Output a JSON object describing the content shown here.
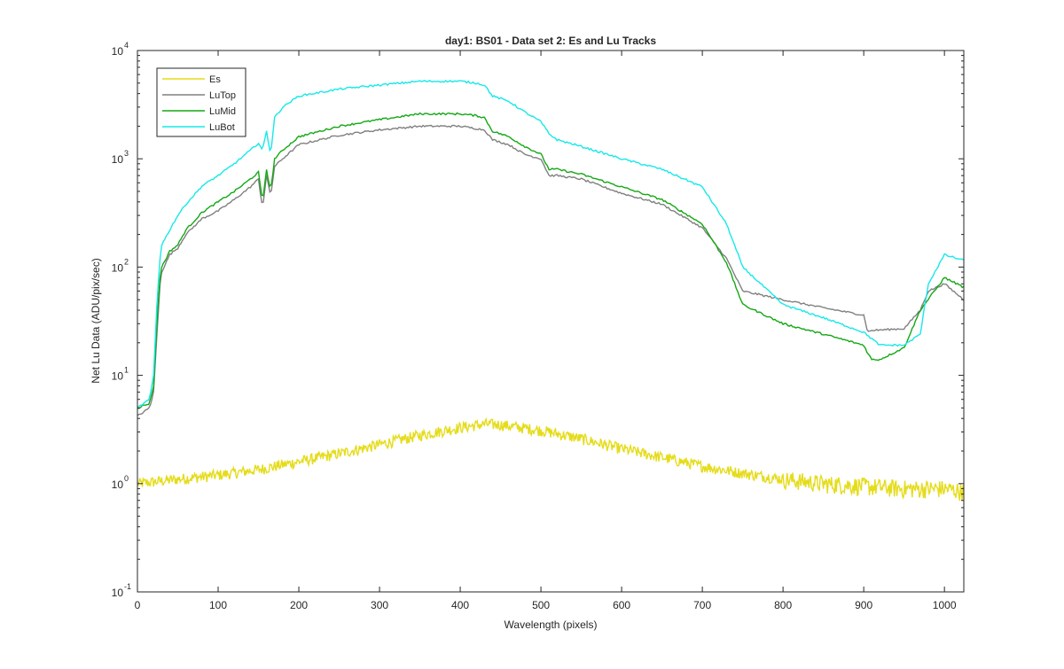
{
  "chart_data": {
    "type": "line",
    "title": "day1: BS01 - Data set 2: Es and Lu Tracks",
    "xlabel": "Wavelength (pixels)",
    "ylabel": "Net Lu Data (ADU/pix/sec)",
    "xlim": [
      0,
      1024
    ],
    "ylim": [
      0.1,
      10000
    ],
    "yscale": "log",
    "grid": false,
    "legend_position": "top-left",
    "x_ticks": [
      "0",
      "100",
      "200",
      "300",
      "400",
      "500",
      "600",
      "700",
      "800",
      "900",
      "1000"
    ],
    "y_ticks": [
      {
        "base": "10",
        "exp": "-1",
        "value": 0.1
      },
      {
        "base": "10",
        "exp": "0",
        "value": 1
      },
      {
        "base": "10",
        "exp": "1",
        "value": 10
      },
      {
        "base": "10",
        "exp": "2",
        "value": 100
      },
      {
        "base": "10",
        "exp": "3",
        "value": 1000
      },
      {
        "base": "10",
        "exp": "4",
        "value": 10000
      }
    ],
    "series": [
      {
        "name": "Es",
        "color": "#e5dc1a",
        "noise": 0.12,
        "x": [
          0,
          50,
          100,
          150,
          200,
          250,
          300,
          350,
          400,
          430,
          450,
          500,
          550,
          600,
          650,
          700,
          750,
          800,
          850,
          900,
          950,
          1000,
          1024
        ],
        "y": [
          1.0,
          1.1,
          1.2,
          1.35,
          1.6,
          1.9,
          2.3,
          2.8,
          3.3,
          3.55,
          3.5,
          3.1,
          2.6,
          2.1,
          1.75,
          1.45,
          1.25,
          1.1,
          1.0,
          0.95,
          0.9,
          0.9,
          0.85
        ]
      },
      {
        "name": "LuTop",
        "color": "#808080",
        "noise": 0,
        "x": [
          0,
          15,
          20,
          25,
          28,
          30,
          40,
          50,
          60,
          80,
          100,
          120,
          140,
          150,
          155,
          160,
          165,
          170,
          180,
          200,
          250,
          300,
          350,
          400,
          420,
          430,
          440,
          460,
          480,
          500,
          510,
          520,
          550,
          600,
          650,
          700,
          730,
          750,
          800,
          850,
          900,
          905,
          910,
          950,
          970,
          980,
          1000,
          1024
        ],
        "y": [
          4.2,
          5,
          7,
          30,
          70,
          90,
          130,
          150,
          200,
          280,
          330,
          420,
          550,
          650,
          350,
          700,
          450,
          850,
          1000,
          1350,
          1650,
          1850,
          2000,
          2000,
          1900,
          1850,
          1500,
          1350,
          1100,
          1000,
          700,
          700,
          650,
          480,
          380,
          230,
          120,
          60,
          50,
          42,
          36,
          25,
          26,
          27,
          40,
          60,
          70,
          50
        ]
      },
      {
        "name": "LuMid",
        "color": "#13a813",
        "noise": 0,
        "x": [
          0,
          15,
          20,
          25,
          28,
          30,
          40,
          50,
          60,
          80,
          100,
          120,
          140,
          150,
          155,
          160,
          165,
          170,
          180,
          200,
          250,
          300,
          350,
          400,
          420,
          430,
          440,
          460,
          480,
          500,
          510,
          520,
          550,
          600,
          650,
          700,
          730,
          750,
          800,
          850,
          900,
          905,
          910,
          920,
          950,
          970,
          1000,
          1024
        ],
        "y": [
          5,
          5.5,
          8,
          40,
          80,
          100,
          140,
          160,
          220,
          320,
          400,
          500,
          650,
          750,
          400,
          800,
          500,
          1000,
          1200,
          1600,
          2000,
          2300,
          2600,
          2600,
          2500,
          2400,
          1800,
          1600,
          1300,
          1100,
          800,
          800,
          720,
          550,
          420,
          250,
          110,
          45,
          30,
          24,
          19,
          16,
          14,
          14,
          18,
          40,
          80,
          65
        ]
      },
      {
        "name": "LuBot",
        "color": "#17e8e8",
        "noise": 0,
        "x": [
          0,
          15,
          20,
          25,
          28,
          30,
          40,
          50,
          60,
          80,
          100,
          120,
          140,
          150,
          155,
          160,
          165,
          170,
          180,
          200,
          250,
          300,
          350,
          400,
          420,
          430,
          440,
          460,
          480,
          500,
          510,
          520,
          550,
          600,
          650,
          700,
          730,
          750,
          800,
          850,
          900,
          920,
          950,
          970,
          980,
          1000,
          1024
        ],
        "y": [
          5,
          6,
          10,
          60,
          120,
          160,
          220,
          300,
          380,
          560,
          700,
          900,
          1200,
          1400,
          1200,
          1800,
          1100,
          2400,
          3000,
          3800,
          4400,
          4800,
          5200,
          5200,
          5000,
          4800,
          3800,
          3400,
          2700,
          2200,
          1700,
          1500,
          1300,
          1000,
          800,
          550,
          250,
          100,
          45,
          34,
          25,
          19,
          19,
          24,
          70,
          130,
          115
        ]
      }
    ]
  }
}
